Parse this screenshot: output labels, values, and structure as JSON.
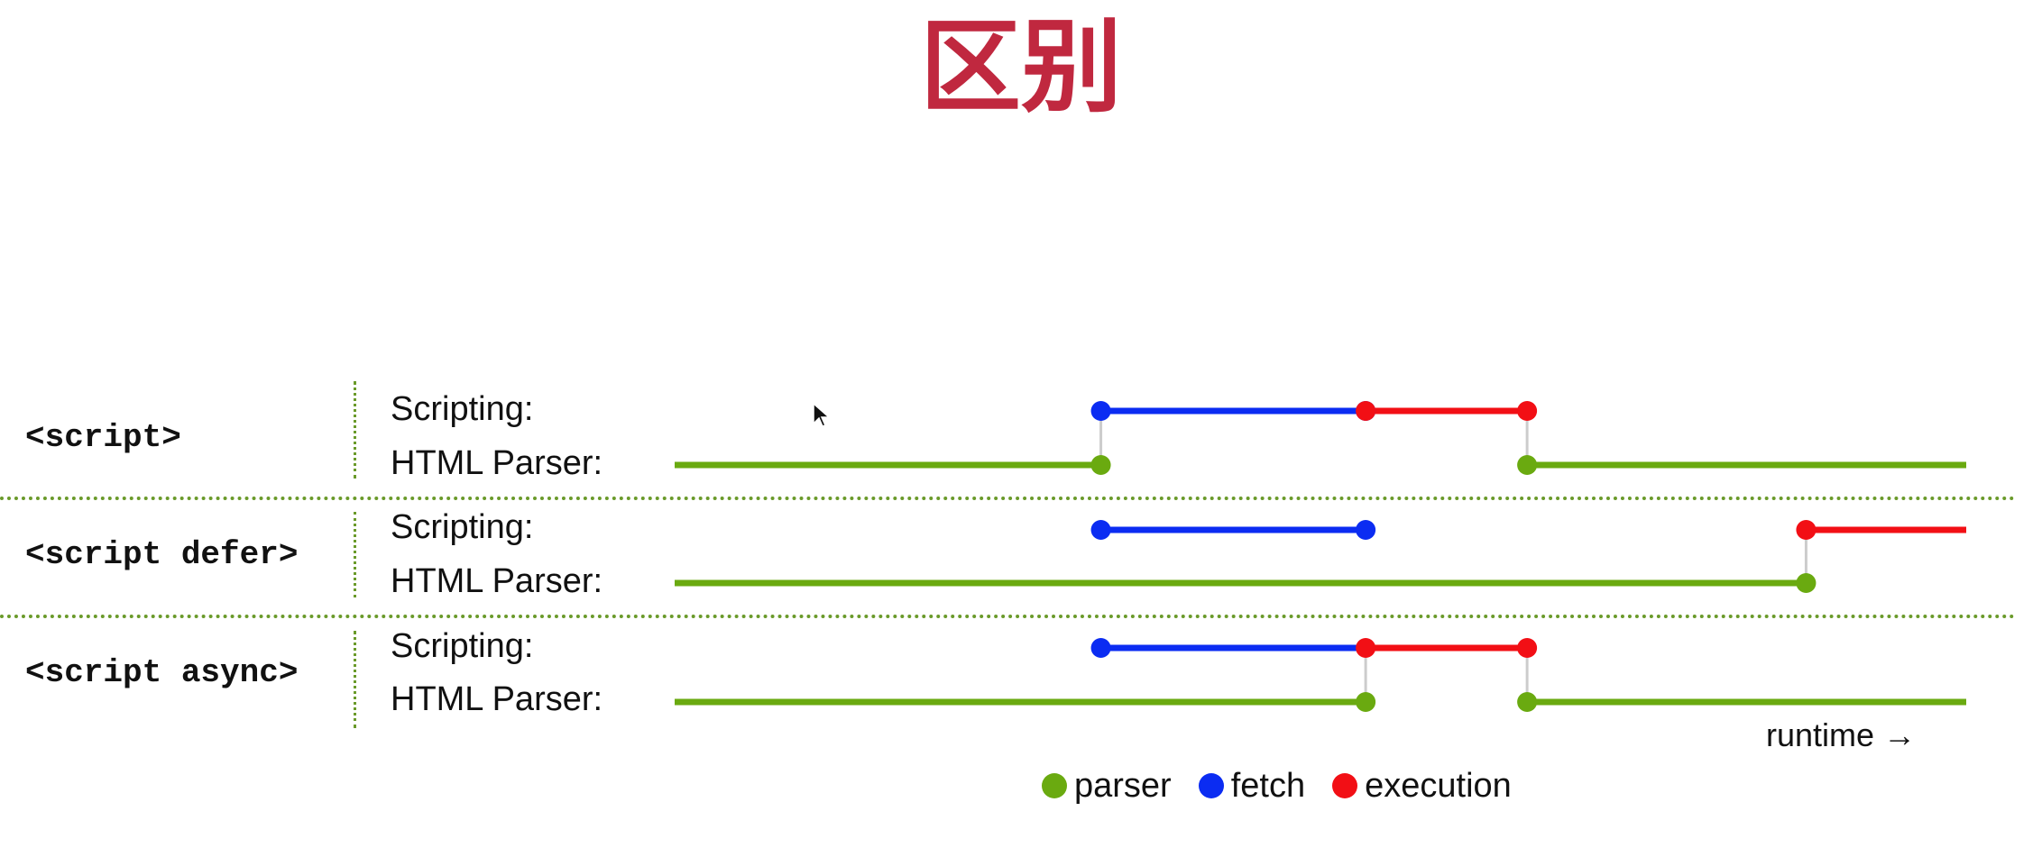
{
  "title": "区别",
  "colors": {
    "parser": "#6aaa10",
    "fetch": "#0b2cf2",
    "execution": "#f20f15",
    "connector": "#cccccc"
  },
  "rows": [
    {
      "tag": "<script>",
      "scripting_label": "Scripting:",
      "parser_label": "HTML Parser:",
      "parser_segments": [
        [
          0,
          0.33
        ],
        [
          0.66,
          1.0
        ]
      ],
      "fetch": [
        0.33,
        0.535
      ],
      "execution": [
        0.535,
        0.66
      ],
      "parser_dots": [
        0.33,
        0.66
      ],
      "connectors": [
        0.33,
        0.66
      ],
      "fetch_dots": [
        0.33,
        0.535
      ],
      "exec_dots": [
        0.535,
        0.66
      ],
      "exec_open_end": false
    },
    {
      "tag": "<script defer>",
      "scripting_label": "Scripting:",
      "parser_label": "HTML Parser:",
      "parser_segments": [
        [
          0,
          0.876
        ]
      ],
      "fetch": [
        0.33,
        0.535
      ],
      "execution": [
        0.876,
        1.0
      ],
      "parser_dots": [
        0.876
      ],
      "connectors": [
        0.876
      ],
      "fetch_dots": [
        0.33,
        0.535
      ],
      "exec_dots": [
        0.876
      ],
      "exec_open_end": true
    },
    {
      "tag": "<script async>",
      "scripting_label": "Scripting:",
      "parser_label": "HTML Parser:",
      "parser_segments": [
        [
          0,
          0.535
        ],
        [
          0.66,
          1.0
        ]
      ],
      "fetch": [
        0.33,
        0.535
      ],
      "execution": [
        0.535,
        0.66
      ],
      "parser_dots": [
        0.535,
        0.66
      ],
      "connectors": [
        0.535,
        0.66
      ],
      "fetch_dots": [
        0.33
      ],
      "exec_dots": [
        0.535,
        0.66
      ],
      "exec_open_end": false
    }
  ],
  "runtime_label": "runtime →",
  "legend": {
    "parser": "parser",
    "fetch": "fetch",
    "execution": "execution"
  }
}
